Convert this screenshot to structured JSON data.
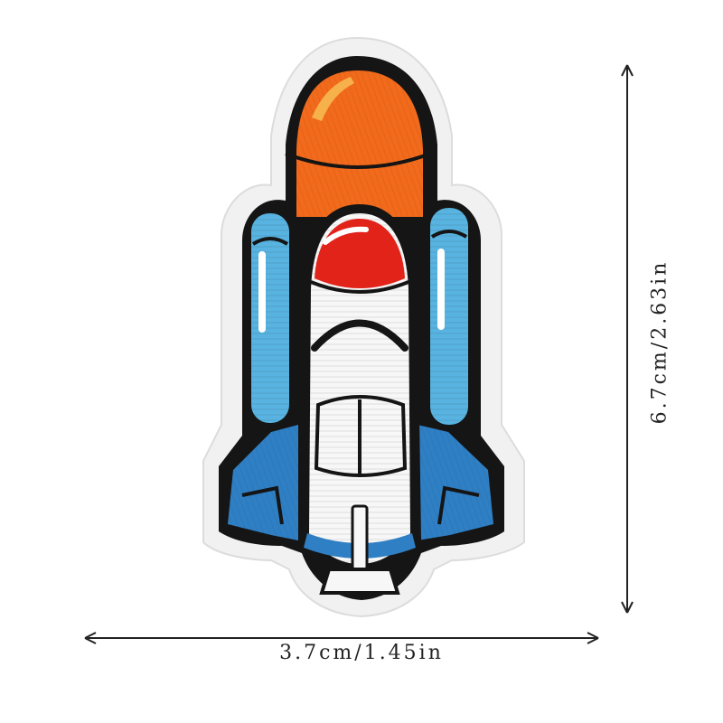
{
  "product": {
    "subject": "embroidered space shuttle patch",
    "colors": {
      "orange_tank": "#f26a1b",
      "orange_highlight": "#f7b14a",
      "red_nose": "#e2231a",
      "blue_booster": "#58b3e0",
      "blue_wing": "#2f7fc4",
      "white_body": "#f7f7f7",
      "outline": "#151515",
      "felt_border": "#f1f1f1"
    }
  },
  "dimensions": {
    "width_label": "3.7cm/1.45in",
    "height_label": "6.7cm/2.63in"
  }
}
